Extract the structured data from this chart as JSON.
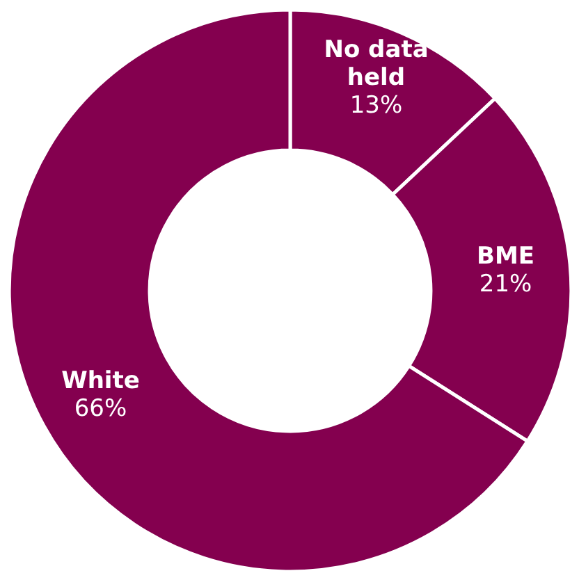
{
  "chart_data": {
    "type": "donut",
    "categories": [
      "No data held",
      "BME",
      "White"
    ],
    "values": [
      13,
      21,
      66
    ],
    "colors": [
      "#84004f",
      "#84004f",
      "#84004f"
    ],
    "value_labels": [
      "13%",
      "21%",
      "66%"
    ]
  }
}
